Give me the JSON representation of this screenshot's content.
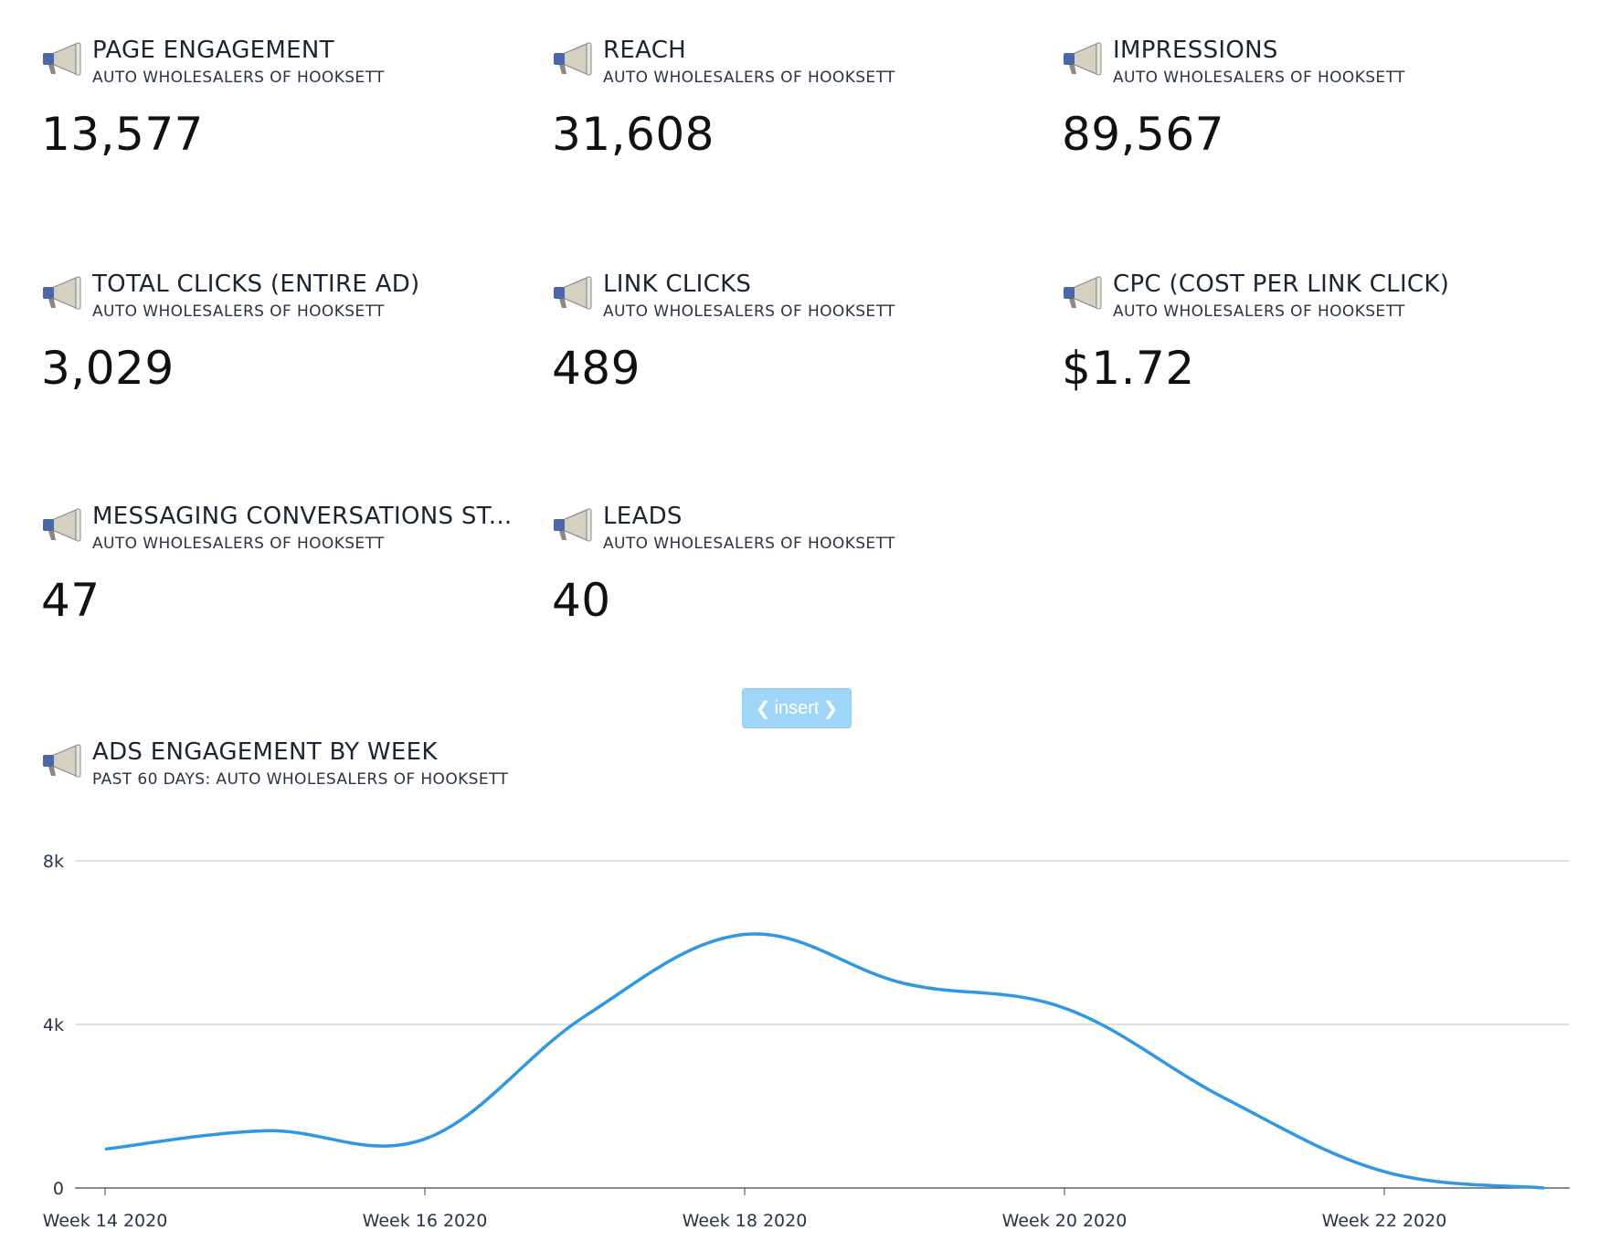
{
  "tiles": [
    {
      "title": "PAGE ENGAGEMENT",
      "subtitle": "AUTO WHOLESALERS OF HOOKSETT",
      "value": "13,577"
    },
    {
      "title": "REACH",
      "subtitle": "AUTO WHOLESALERS OF HOOKSETT",
      "value": "31,608"
    },
    {
      "title": "IMPRESSIONS",
      "subtitle": "AUTO WHOLESALERS OF HOOKSETT",
      "value": "89,567"
    },
    {
      "title": "TOTAL CLICKS (ENTIRE AD)",
      "subtitle": "AUTO WHOLESALERS OF HOOKSETT",
      "value": "3,029"
    },
    {
      "title": "LINK CLICKS",
      "subtitle": "AUTO WHOLESALERS OF HOOKSETT",
      "value": "489"
    },
    {
      "title": "CPC (COST PER LINK CLICK)",
      "subtitle": "AUTO WHOLESALERS OF HOOKSETT",
      "value": "$1.72"
    },
    {
      "title": "MESSAGING CONVERSATIONS ST...",
      "subtitle": "AUTO WHOLESALERS OF HOOKSETT",
      "value": "47"
    },
    {
      "title": "LEADS",
      "subtitle": "AUTO WHOLESALERS OF HOOKSETT",
      "value": "40"
    }
  ],
  "insert_button": {
    "label": "insert",
    "left_icon": "chevron-left-icon",
    "right_icon": "chevron-right-icon"
  },
  "chart_panel": {
    "title": "ADS ENGAGEMENT BY WEEK",
    "subtitle": "PAST 60 DAYS:  AUTO WHOLESALERS OF HOOKSETT",
    "icon": "megaphone-icon"
  },
  "colors": {
    "line": "#2f97e4",
    "grid": "#c8ccd2",
    "insert_bg": "#9fd6f7",
    "megaphone_blue": "#4a68a8",
    "megaphone_body": "#d4d0c2"
  },
  "chart_data": {
    "type": "line",
    "x": [
      "Week 14 2020",
      "Week 15 2020",
      "Week 16 2020",
      "Week 17 2020",
      "Week 18 2020",
      "Week 19 2020",
      "Week 20 2020",
      "Week 21 2020",
      "Week 22 2020",
      "Week 23 2020"
    ],
    "values": [
      950,
      1400,
      1200,
      4200,
      6200,
      5000,
      4400,
      2200,
      400,
      0
    ],
    "xticks": [
      "Week 14 2020",
      "Week 16 2020",
      "Week 18 2020",
      "Week 20 2020",
      "Week 22 2020"
    ],
    "yticks": [
      0,
      4000,
      8000
    ],
    "ytick_labels": [
      "0",
      "4k",
      "8k"
    ],
    "ylim": [
      0,
      8000
    ],
    "grid": true,
    "smooth": true
  }
}
